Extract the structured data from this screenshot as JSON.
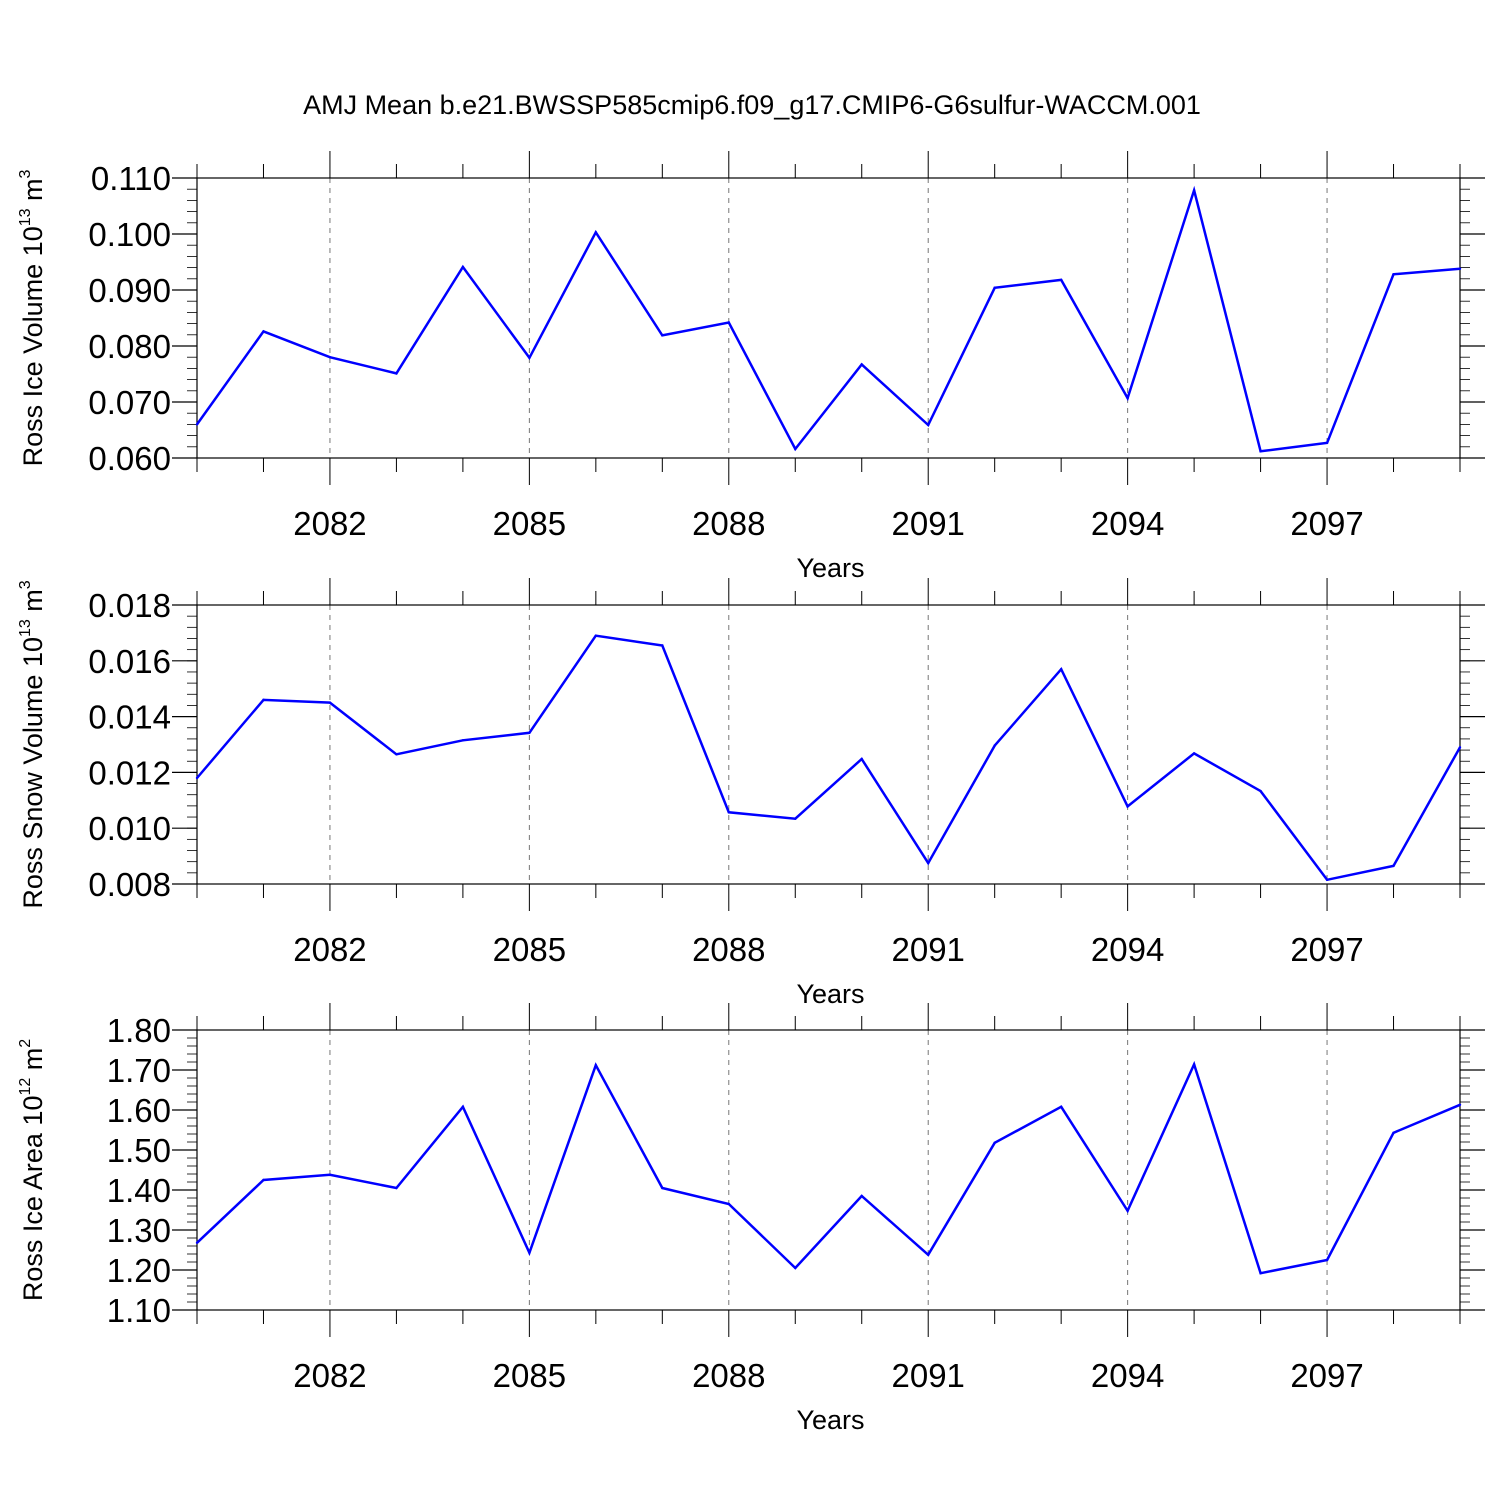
{
  "title": "AMJ Mean b.e21.BWSSP585cmip6.f09_g17.CMIP6-G6sulfur-WACCM.001",
  "colors": {
    "line": "#0000ff",
    "axis": "#000000",
    "grid": "#777777"
  },
  "chart_data": [
    {
      "type": "line",
      "name": "ice-volume",
      "ylabel": {
        "prefix": "Ross Ice Volume 10",
        "exp": "13",
        "unit": " m",
        "unit_exp": "3"
      },
      "xlabel": "Years",
      "xlim": [
        2080,
        2099
      ],
      "ylim": [
        0.06,
        0.11
      ],
      "y_ticks": [
        "0.060",
        "0.070",
        "0.080",
        "0.090",
        "0.100",
        "0.110"
      ],
      "y_tick_values": [
        0.06,
        0.07,
        0.08,
        0.09,
        0.1,
        0.11
      ],
      "y_minor_step": 0.002,
      "x_ticks": [
        "2082",
        "2085",
        "2088",
        "2091",
        "2094",
        "2097"
      ],
      "x_tick_values": [
        2082,
        2085,
        2088,
        2091,
        2094,
        2097
      ],
      "grid": "x-dashed",
      "series": [
        {
          "color": "#0000ff",
          "x": [
            2080,
            2081,
            2082,
            2083,
            2084,
            2085,
            2086,
            2087,
            2088,
            2089,
            2090,
            2091,
            2092,
            2093,
            2094,
            2095,
            2096,
            2097,
            2098,
            2099
          ],
          "values": [
            0.066,
            0.0826,
            0.078,
            0.0751,
            0.0941,
            0.0779,
            0.1003,
            0.0819,
            0.0842,
            0.0616,
            0.0767,
            0.0659,
            0.0904,
            0.0918,
            0.0707,
            0.1078,
            0.0612,
            0.0627,
            0.0928,
            0.0938
          ]
        }
      ]
    },
    {
      "type": "line",
      "name": "snow-volume",
      "ylabel": {
        "prefix": "Ross Snow Volume 10",
        "exp": "13",
        "unit": " m",
        "unit_exp": "3"
      },
      "xlabel": "Years",
      "xlim": [
        2080,
        2099
      ],
      "ylim": [
        0.008,
        0.018
      ],
      "y_ticks": [
        "0.008",
        "0.010",
        "0.012",
        "0.014",
        "0.016",
        "0.018"
      ],
      "y_tick_values": [
        0.008,
        0.01,
        0.012,
        0.014,
        0.016,
        0.018
      ],
      "y_minor_step": 0.0004,
      "x_ticks": [
        "2082",
        "2085",
        "2088",
        "2091",
        "2094",
        "2097"
      ],
      "x_tick_values": [
        2082,
        2085,
        2088,
        2091,
        2094,
        2097
      ],
      "grid": "x-dashed",
      "series": [
        {
          "color": "#0000ff",
          "x": [
            2080,
            2081,
            2082,
            2083,
            2084,
            2085,
            2086,
            2087,
            2088,
            2089,
            2090,
            2091,
            2092,
            2093,
            2094,
            2095,
            2096,
            2097,
            2098,
            2099
          ],
          "values": [
            0.0118,
            0.0146,
            0.0145,
            0.01265,
            0.01315,
            0.01342,
            0.0169,
            0.01655,
            0.01057,
            0.01034,
            0.01248,
            0.00875,
            0.01296,
            0.0157,
            0.01078,
            0.01268,
            0.01133,
            0.00815,
            0.00865,
            0.0129
          ]
        }
      ]
    },
    {
      "type": "line",
      "name": "ice-area",
      "ylabel": {
        "prefix": "Ross Ice Area 10",
        "exp": "12",
        "unit": " m",
        "unit_exp": "2"
      },
      "xlabel": "Years",
      "xlim": [
        2080,
        2099
      ],
      "ylim": [
        1.1,
        1.8
      ],
      "y_ticks": [
        "1.10",
        "1.20",
        "1.30",
        "1.40",
        "1.50",
        "1.60",
        "1.70",
        "1.80"
      ],
      "y_tick_values": [
        1.1,
        1.2,
        1.3,
        1.4,
        1.5,
        1.6,
        1.7,
        1.8
      ],
      "y_minor_step": 0.02,
      "x_ticks": [
        "2082",
        "2085",
        "2088",
        "2091",
        "2094",
        "2097"
      ],
      "x_tick_values": [
        2082,
        2085,
        2088,
        2091,
        2094,
        2097
      ],
      "grid": "x-dashed",
      "series": [
        {
          "color": "#0000ff",
          "x": [
            2080,
            2081,
            2082,
            2083,
            2084,
            2085,
            2086,
            2087,
            2088,
            2089,
            2090,
            2091,
            2092,
            2093,
            2094,
            2095,
            2096,
            2097,
            2098,
            2099
          ],
          "values": [
            1.268,
            1.425,
            1.438,
            1.405,
            1.608,
            1.243,
            1.712,
            1.405,
            1.365,
            1.205,
            1.385,
            1.238,
            1.518,
            1.608,
            1.348,
            1.714,
            1.192,
            1.225,
            1.543,
            1.613
          ]
        }
      ]
    }
  ]
}
